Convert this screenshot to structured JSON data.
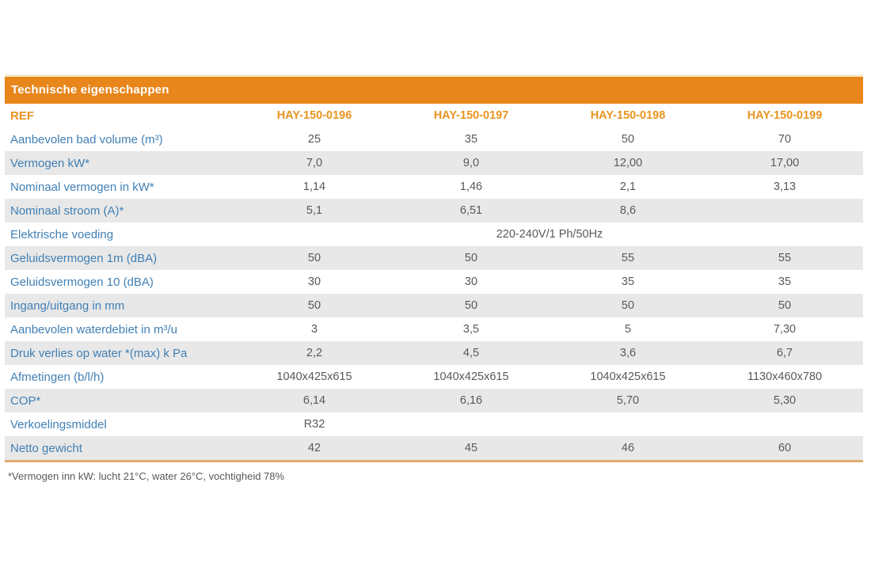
{
  "table": {
    "title": "Technische eigenschappen",
    "ref_label": "REF",
    "columns": [
      "HAY-150-0196",
      "HAY-150-0197",
      "HAY-150-0198",
      "HAY-150-0199"
    ],
    "rows": [
      {
        "label": "Aanbevolen bad volume (m³)",
        "values": [
          "25",
          "35",
          "50",
          "70"
        ],
        "shaded": false
      },
      {
        "label": "Vermogen kW*",
        "values": [
          "7,0",
          "9,0",
          "12,00",
          "17,00"
        ],
        "shaded": true
      },
      {
        "label": "Nominaal vermogen in kW*",
        "values": [
          "1,14",
          "1,46",
          "2,1",
          "3,13"
        ],
        "shaded": false
      },
      {
        "label": "Nominaal stroom (A)*",
        "values": [
          "5,1",
          "6,51",
          "8,6",
          ""
        ],
        "shaded": true
      },
      {
        "label": "Elektrische voeding",
        "span_value": "220-240V/1 Ph/50Hz",
        "shaded": false
      },
      {
        "label": "Geluidsvermogen 1m (dBA)",
        "values": [
          "50",
          "50",
          "55",
          "55"
        ],
        "shaded": true
      },
      {
        "label": "Geluidsvermogen 10 (dBA)",
        "values": [
          "30",
          "30",
          "35",
          "35"
        ],
        "shaded": false
      },
      {
        "label": "Ingang/uitgang in mm",
        "values": [
          "50",
          "50",
          "50",
          "50"
        ],
        "shaded": true
      },
      {
        "label": "Aanbevolen waterdebiet in m³/u",
        "values": [
          "3",
          "3,5",
          "5",
          "7,30"
        ],
        "shaded": false
      },
      {
        "label": "Druk verlies op water *(max) k Pa",
        "values": [
          "2,2",
          "4,5",
          "3,6",
          "6,7"
        ],
        "shaded": true
      },
      {
        "label": "Afmetingen (b/l/h)",
        "values": [
          "1040x425x615",
          "1040x425x615",
          "1040x425x615",
          "1130x460x780"
        ],
        "shaded": false
      },
      {
        "label": "COP*",
        "values": [
          "6,14",
          "6,16",
          "5,70",
          "5,30"
        ],
        "shaded": true
      },
      {
        "label": "Verkoelingsmiddel",
        "values": [
          "R32",
          "",
          "",
          ""
        ],
        "shaded": false
      },
      {
        "label": "Netto gewicht",
        "values": [
          "42",
          "45",
          "46",
          "60"
        ],
        "shaded": true
      }
    ],
    "footnote": "*Vermogen inn kW: lucht 21°C, water 26°C, vochtigheid 78%"
  },
  "colors": {
    "header_bar_bg": "#E8861C",
    "header_bar_text": "#FFFFFF",
    "column_header_text": "#E8941F",
    "row_label_text": "#4180B5",
    "value_text": "#58595B",
    "shaded_row_bg": "#E8E8E8",
    "bottom_rule": "#E2AC72"
  }
}
